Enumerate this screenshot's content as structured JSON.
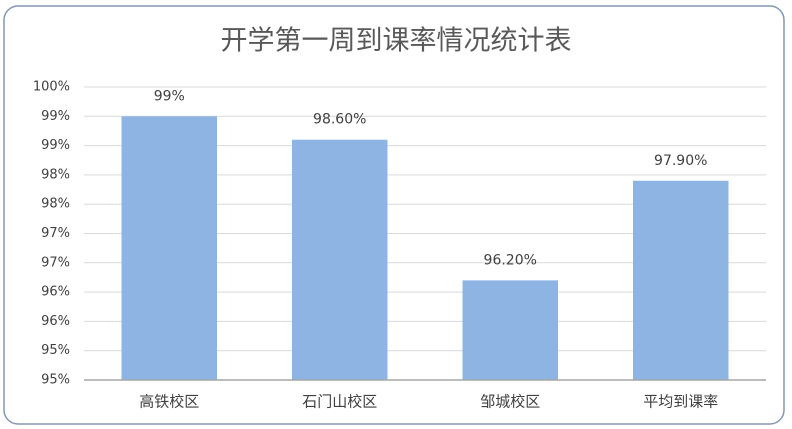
{
  "chart_data": {
    "type": "bar",
    "title": "开学第一周到课率情况统计表",
    "categories": [
      "高铁校区",
      "石门山校区",
      "邹城校区",
      "平均到课率"
    ],
    "values": [
      99,
      98.6,
      96.2,
      97.9
    ],
    "value_labels": [
      "99%",
      "98.60%",
      "96.20%",
      "97.90%"
    ],
    "color": "#8db4e2",
    "ylim": [
      94.5,
      99.5
    ],
    "yticks": [
      {
        "value": 94.5,
        "label": "95%"
      },
      {
        "value": 95,
        "label": "95%"
      },
      {
        "value": 95.5,
        "label": "96%"
      },
      {
        "value": 96,
        "label": "96%"
      },
      {
        "value": 96.5,
        "label": "97%"
      },
      {
        "value": 97,
        "label": "97%"
      },
      {
        "value": 97.5,
        "label": "98%"
      },
      {
        "value": 98,
        "label": "98%"
      },
      {
        "value": 98.5,
        "label": "99%"
      },
      {
        "value": 99,
        "label": "99%"
      },
      {
        "value": 99.5,
        "label": "100%"
      }
    ],
    "grid": true
  }
}
